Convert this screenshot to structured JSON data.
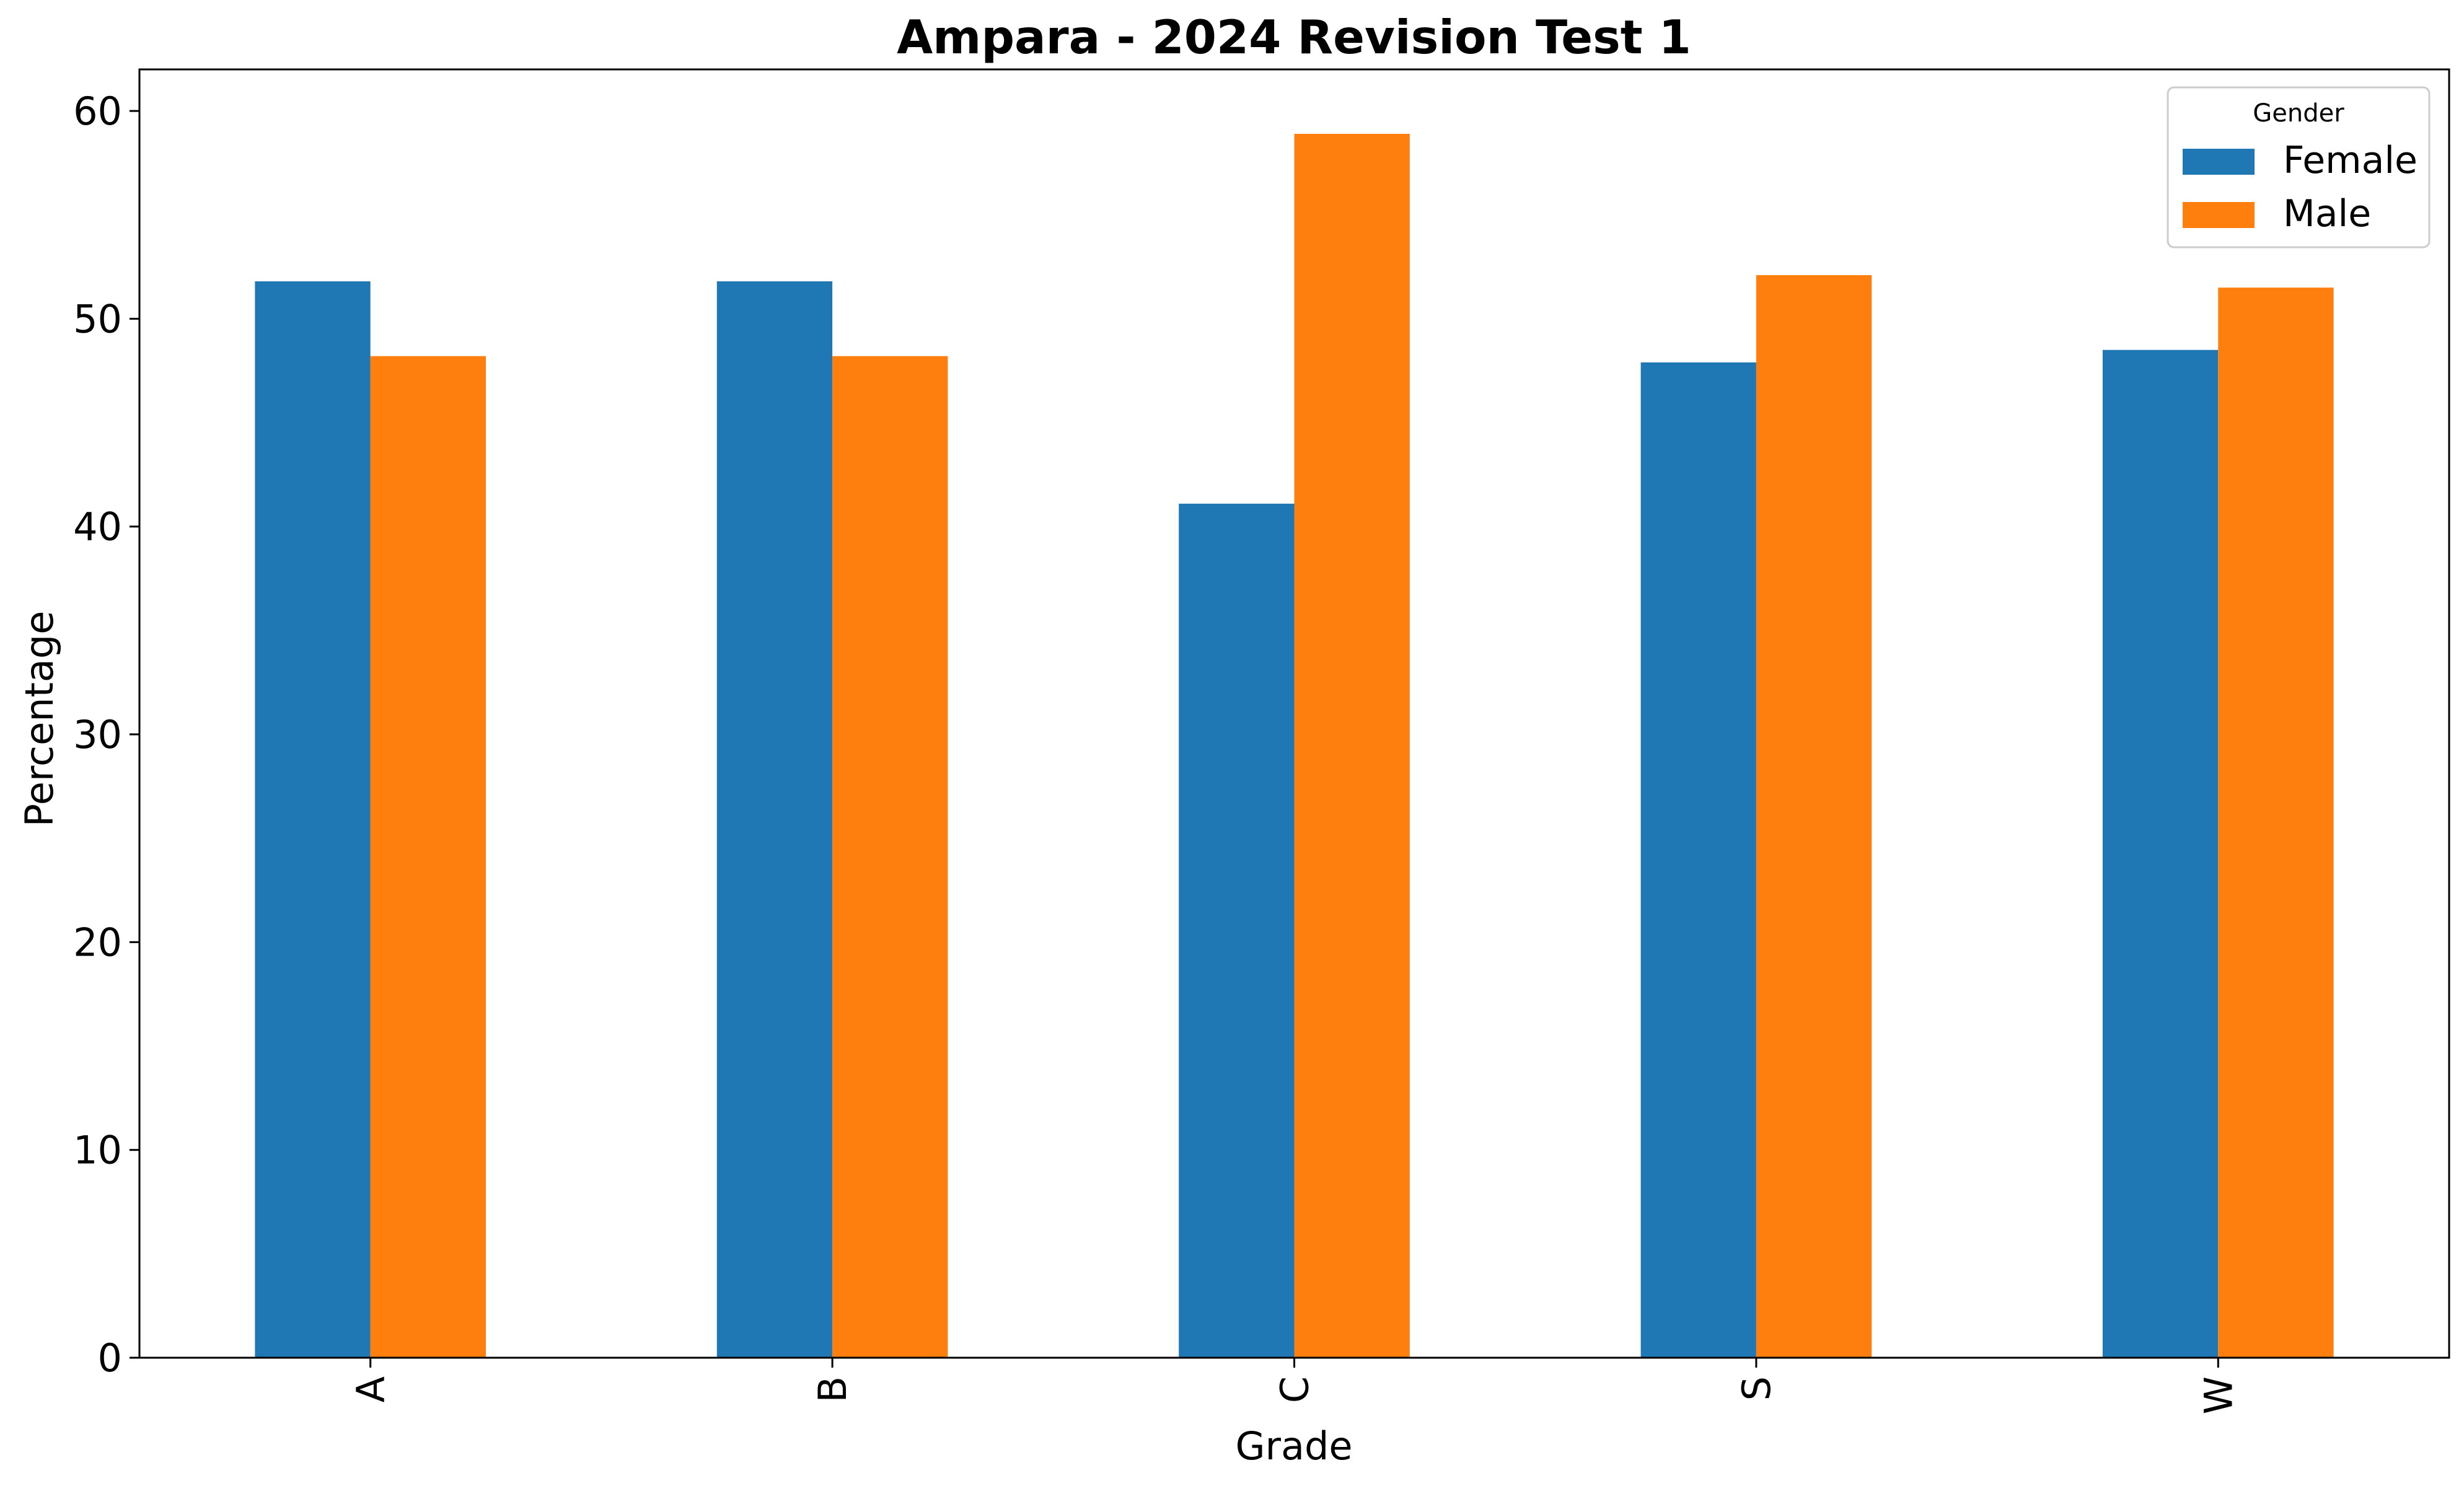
{
  "chart_data": {
    "type": "bar",
    "title": "Ampara - 2024 Revision Test 1",
    "xlabel": "Grade",
    "ylabel": "Percentage",
    "categories": [
      "A",
      "B",
      "C",
      "S",
      "W"
    ],
    "series": [
      {
        "name": "Female",
        "color": "#1f77b4",
        "values": [
          51.8,
          51.8,
          41.1,
          47.9,
          48.5
        ]
      },
      {
        "name": "Male",
        "color": "#ff7f0e",
        "values": [
          48.2,
          48.2,
          58.9,
          52.1,
          51.5
        ]
      }
    ],
    "ylim": [
      0,
      62
    ],
    "yticks": [
      0,
      10,
      20,
      30,
      40,
      50,
      60
    ],
    "grid": false,
    "legend": {
      "title": "Gender",
      "placement": "top-right"
    },
    "x_tick_rotation": "vertical"
  }
}
